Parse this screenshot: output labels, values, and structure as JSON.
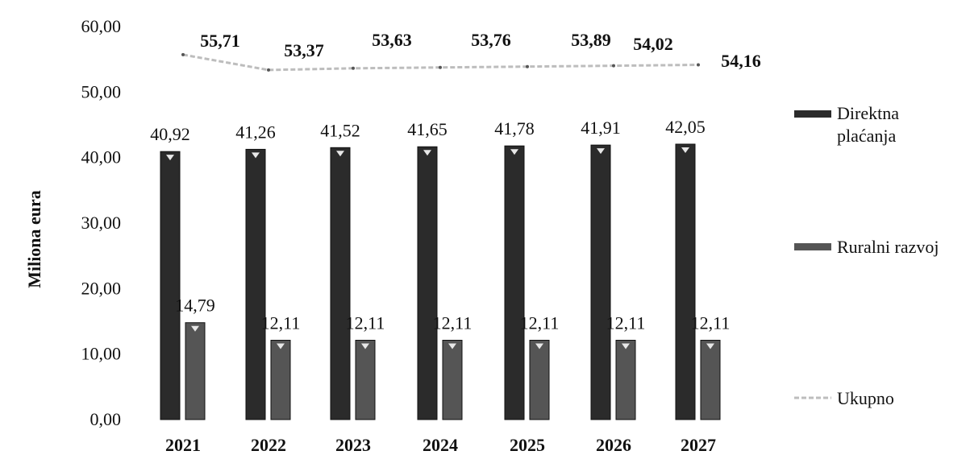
{
  "chart_data": {
    "type": "bar",
    "title": "",
    "xlabel": "",
    "ylabel": "Miliona eura",
    "ylim": [
      0,
      60
    ],
    "yticks": [
      "0,00",
      "10,00",
      "20,00",
      "30,00",
      "40,00",
      "50,00",
      "60,00"
    ],
    "categories": [
      "2021",
      "2022",
      "2023",
      "2024",
      "2025",
      "2026",
      "2027"
    ],
    "grid": false,
    "legend_position": "right",
    "series": [
      {
        "name": "Direktna plaćanja",
        "type": "bar",
        "color": "#2b2b2b",
        "values": [
          40.92,
          41.26,
          41.52,
          41.65,
          41.78,
          41.91,
          42.05
        ],
        "labels": [
          "40,92",
          "41,26",
          "41,52",
          "41,65",
          "41,78",
          "41,91",
          "42,05"
        ]
      },
      {
        "name": "Ruralni razvoj",
        "type": "bar",
        "color": "#555555",
        "values": [
          14.79,
          12.11,
          12.11,
          12.11,
          12.11,
          12.11,
          12.11
        ],
        "labels": [
          "14,79",
          "12,11",
          "12,11",
          "12,11",
          "12,11",
          "12,11",
          "12,11"
        ]
      },
      {
        "name": "Ukupno",
        "type": "line",
        "color": "#bdbdbd",
        "values": [
          55.71,
          53.37,
          53.63,
          53.76,
          53.89,
          54.02,
          54.16
        ],
        "labels": [
          "55,71",
          "53,37",
          "53,63",
          "53,76",
          "53,89",
          "54,02",
          "54,16"
        ]
      }
    ]
  }
}
